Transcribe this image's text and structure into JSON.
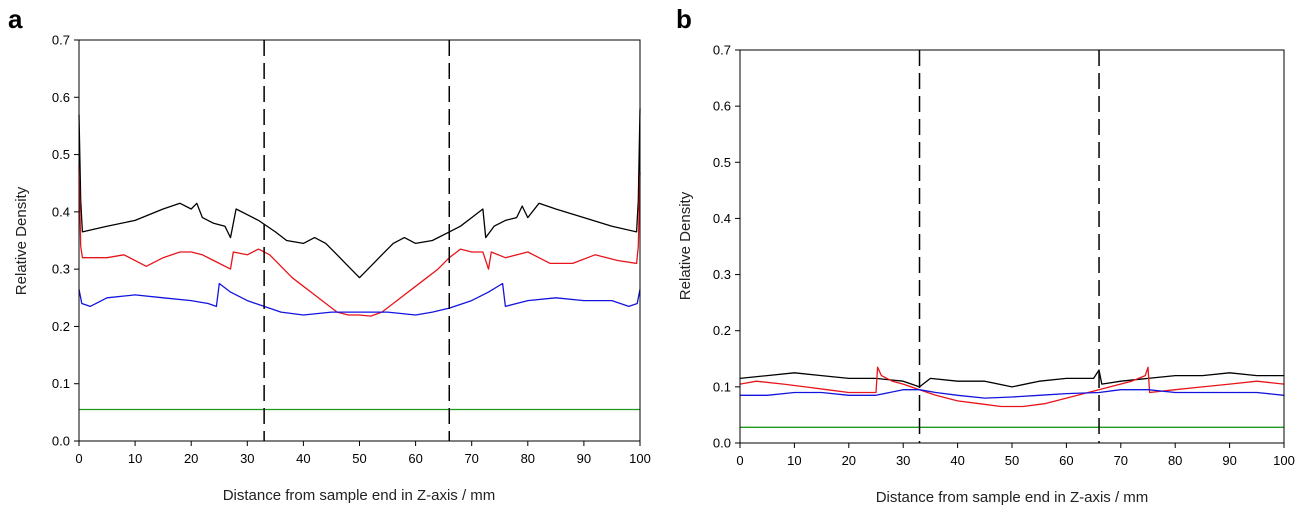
{
  "chart_data": [
    {
      "panel_label": "a",
      "type": "line",
      "xlabel": "Distance from sample end in Z-axis / mm",
      "ylabel": "Relative Density",
      "xlim": [
        0,
        100
      ],
      "ylim": [
        0,
        0.7
      ],
      "x_ticks": [
        "0",
        "10",
        "20",
        "30",
        "40",
        "50",
        "60",
        "70",
        "80",
        "90",
        "100"
      ],
      "y_ticks": [
        "0.0",
        "0.1",
        "0.2",
        "0.3",
        "0.4",
        "0.5",
        "0.6",
        "0.7"
      ],
      "grid": false,
      "vertical_dashed_lines": [
        33,
        66
      ],
      "series": [
        {
          "color": "#000000",
          "points": [
            [
              0,
              0.57
            ],
            [
              0.3,
              0.42
            ],
            [
              0.6,
              0.365
            ],
            [
              5,
              0.375
            ],
            [
              10,
              0.385
            ],
            [
              15,
              0.405
            ],
            [
              18,
              0.415
            ],
            [
              20,
              0.405
            ],
            [
              21,
              0.415
            ],
            [
              22,
              0.39
            ],
            [
              24,
              0.38
            ],
            [
              26,
              0.375
            ],
            [
              27,
              0.355
            ],
            [
              28,
              0.405
            ],
            [
              30,
              0.395
            ],
            [
              32,
              0.385
            ],
            [
              35,
              0.365
            ],
            [
              37,
              0.35
            ],
            [
              40,
              0.345
            ],
            [
              42,
              0.355
            ],
            [
              44,
              0.345
            ],
            [
              46,
              0.325
            ],
            [
              48,
              0.305
            ],
            [
              50,
              0.285
            ],
            [
              52,
              0.305
            ],
            [
              54,
              0.325
            ],
            [
              56,
              0.345
            ],
            [
              58,
              0.355
            ],
            [
              60,
              0.345
            ],
            [
              63,
              0.35
            ],
            [
              66,
              0.365
            ],
            [
              68,
              0.375
            ],
            [
              70,
              0.39
            ],
            [
              72,
              0.405
            ],
            [
              72.5,
              0.355
            ],
            [
              74,
              0.375
            ],
            [
              76,
              0.385
            ],
            [
              78,
              0.39
            ],
            [
              79,
              0.41
            ],
            [
              80,
              0.39
            ],
            [
              82,
              0.415
            ],
            [
              85,
              0.405
            ],
            [
              90,
              0.39
            ],
            [
              95,
              0.375
            ],
            [
              99.4,
              0.365
            ],
            [
              99.7,
              0.42
            ],
            [
              100,
              0.58
            ]
          ]
        },
        {
          "color": "#e8141b",
          "points": [
            [
              0,
              0.48
            ],
            [
              0.3,
              0.34
            ],
            [
              0.6,
              0.32
            ],
            [
              5,
              0.32
            ],
            [
              8,
              0.325
            ],
            [
              12,
              0.305
            ],
            [
              15,
              0.32
            ],
            [
              18,
              0.33
            ],
            [
              20,
              0.33
            ],
            [
              22,
              0.325
            ],
            [
              24,
              0.315
            ],
            [
              27,
              0.3
            ],
            [
              27.5,
              0.33
            ],
            [
              30,
              0.325
            ],
            [
              32,
              0.335
            ],
            [
              34,
              0.325
            ],
            [
              36,
              0.305
            ],
            [
              38,
              0.285
            ],
            [
              40,
              0.27
            ],
            [
              42,
              0.255
            ],
            [
              44,
              0.24
            ],
            [
              46,
              0.225
            ],
            [
              48,
              0.22
            ],
            [
              50,
              0.22
            ],
            [
              52,
              0.218
            ],
            [
              54,
              0.225
            ],
            [
              56,
              0.24
            ],
            [
              58,
              0.255
            ],
            [
              60,
              0.27
            ],
            [
              62,
              0.285
            ],
            [
              64,
              0.3
            ],
            [
              66,
              0.32
            ],
            [
              68,
              0.335
            ],
            [
              70,
              0.33
            ],
            [
              72,
              0.33
            ],
            [
              73,
              0.3
            ],
            [
              73.5,
              0.33
            ],
            [
              76,
              0.32
            ],
            [
              80,
              0.33
            ],
            [
              84,
              0.31
            ],
            [
              88,
              0.31
            ],
            [
              92,
              0.325
            ],
            [
              96,
              0.315
            ],
            [
              99.4,
              0.31
            ],
            [
              99.7,
              0.34
            ],
            [
              100,
              0.47
            ]
          ]
        },
        {
          "color": "#1414e0",
          "points": [
            [
              0,
              0.265
            ],
            [
              0.5,
              0.24
            ],
            [
              2,
              0.235
            ],
            [
              5,
              0.25
            ],
            [
              10,
              0.255
            ],
            [
              15,
              0.25
            ],
            [
              20,
              0.245
            ],
            [
              23,
              0.24
            ],
            [
              24.5,
              0.235
            ],
            [
              25,
              0.275
            ],
            [
              27,
              0.26
            ],
            [
              30,
              0.245
            ],
            [
              33,
              0.235
            ],
            [
              36,
              0.225
            ],
            [
              40,
              0.22
            ],
            [
              45,
              0.225
            ],
            [
              50,
              0.225
            ],
            [
              55,
              0.225
            ],
            [
              60,
              0.22
            ],
            [
              63,
              0.225
            ],
            [
              66,
              0.232
            ],
            [
              70,
              0.245
            ],
            [
              73,
              0.26
            ],
            [
              75.5,
              0.275
            ],
            [
              76,
              0.235
            ],
            [
              80,
              0.245
            ],
            [
              85,
              0.25
            ],
            [
              90,
              0.245
            ],
            [
              95,
              0.245
            ],
            [
              98,
              0.235
            ],
            [
              99.5,
              0.24
            ],
            [
              100,
              0.265
            ]
          ]
        },
        {
          "color": "#1e9a1e",
          "points": [
            [
              0,
              0.055
            ],
            [
              100,
              0.055
            ]
          ]
        }
      ]
    },
    {
      "panel_label": "b",
      "type": "line",
      "xlabel": "Distance from sample end in Z-axis / mm",
      "ylabel": "Relative Density",
      "xlim": [
        0,
        100
      ],
      "ylim": [
        0,
        0.7
      ],
      "x_ticks": [
        "0",
        "10",
        "20",
        "30",
        "40",
        "50",
        "60",
        "70",
        "80",
        "90",
        "100"
      ],
      "y_ticks": [
        "0.0",
        "0.1",
        "0.2",
        "0.3",
        "0.4",
        "0.5",
        "0.6",
        "0.7"
      ],
      "grid": false,
      "vertical_dashed_lines": [
        33,
        66
      ],
      "series": [
        {
          "color": "#000000",
          "points": [
            [
              0,
              0.115
            ],
            [
              5,
              0.12
            ],
            [
              10,
              0.125
            ],
            [
              15,
              0.12
            ],
            [
              20,
              0.115
            ],
            [
              25,
              0.115
            ],
            [
              30,
              0.11
            ],
            [
              33,
              0.1
            ],
            [
              35,
              0.115
            ],
            [
              40,
              0.11
            ],
            [
              45,
              0.11
            ],
            [
              50,
              0.1
            ],
            [
              55,
              0.11
            ],
            [
              60,
              0.115
            ],
            [
              65,
              0.115
            ],
            [
              66,
              0.13
            ],
            [
              66.5,
              0.105
            ],
            [
              70,
              0.11
            ],
            [
              75,
              0.115
            ],
            [
              80,
              0.12
            ],
            [
              85,
              0.12
            ],
            [
              90,
              0.125
            ],
            [
              95,
              0.12
            ],
            [
              100,
              0.12
            ]
          ]
        },
        {
          "color": "#e8141b",
          "points": [
            [
              0,
              0.105
            ],
            [
              3,
              0.11
            ],
            [
              8,
              0.105
            ],
            [
              12,
              0.1
            ],
            [
              16,
              0.095
            ],
            [
              20,
              0.09
            ],
            [
              25,
              0.09
            ],
            [
              25.3,
              0.135
            ],
            [
              26,
              0.12
            ],
            [
              28,
              0.11
            ],
            [
              30,
              0.105
            ],
            [
              33,
              0.095
            ],
            [
              36,
              0.085
            ],
            [
              40,
              0.075
            ],
            [
              44,
              0.07
            ],
            [
              48,
              0.065
            ],
            [
              52,
              0.065
            ],
            [
              56,
              0.07
            ],
            [
              60,
              0.08
            ],
            [
              64,
              0.09
            ],
            [
              68,
              0.1
            ],
            [
              72,
              0.11
            ],
            [
              74.5,
              0.12
            ],
            [
              75,
              0.135
            ],
            [
              75.3,
              0.09
            ],
            [
              80,
              0.095
            ],
            [
              85,
              0.1
            ],
            [
              90,
              0.105
            ],
            [
              95,
              0.11
            ],
            [
              100,
              0.105
            ]
          ]
        },
        {
          "color": "#1414e0",
          "points": [
            [
              0,
              0.085
            ],
            [
              5,
              0.085
            ],
            [
              10,
              0.09
            ],
            [
              15,
              0.09
            ],
            [
              20,
              0.085
            ],
            [
              25,
              0.085
            ],
            [
              30,
              0.095
            ],
            [
              33,
              0.095
            ],
            [
              36,
              0.09
            ],
            [
              40,
              0.085
            ],
            [
              45,
              0.08
            ],
            [
              50,
              0.082
            ],
            [
              55,
              0.085
            ],
            [
              60,
              0.088
            ],
            [
              66,
              0.09
            ],
            [
              70,
              0.095
            ],
            [
              75,
              0.095
            ],
            [
              80,
              0.09
            ],
            [
              85,
              0.09
            ],
            [
              90,
              0.09
            ],
            [
              95,
              0.09
            ],
            [
              100,
              0.085
            ]
          ]
        },
        {
          "color": "#1e9a1e",
          "points": [
            [
              0,
              0.028
            ],
            [
              100,
              0.028
            ]
          ]
        }
      ]
    }
  ]
}
